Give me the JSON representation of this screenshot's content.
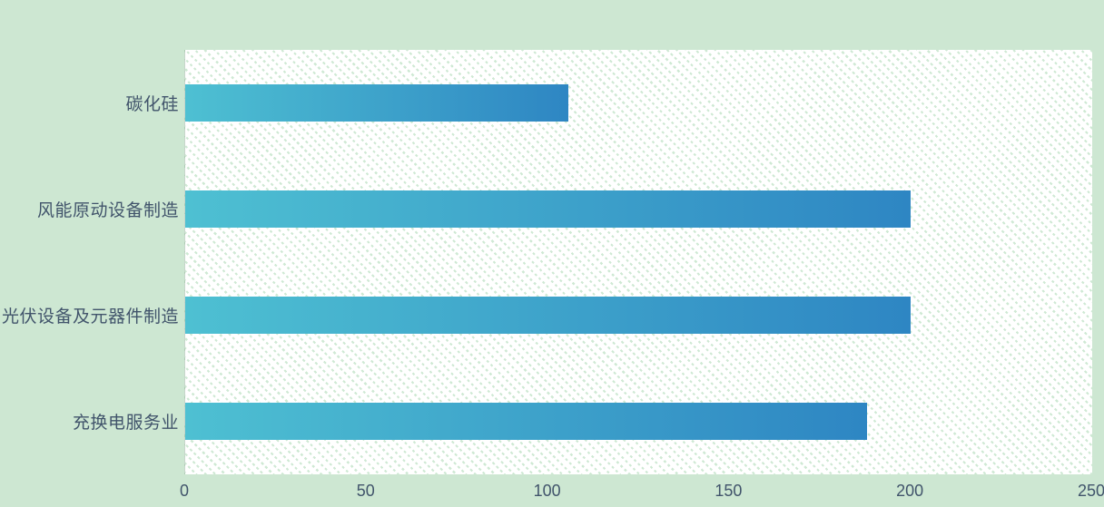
{
  "chart_data": {
    "type": "bar",
    "orientation": "horizontal",
    "title": "",
    "xlabel": "",
    "ylabel": "",
    "categories": [
      "碳化硅",
      "风能原动设备制造",
      "光伏设备及元器件制造",
      "充换电服务业"
    ],
    "values": [
      105.5,
      200,
      200,
      188
    ],
    "xlim": [
      0,
      250
    ],
    "x_ticks": [
      0,
      50,
      100,
      150,
      200,
      250
    ],
    "grid": false,
    "legend": null,
    "plot_background": "hatched"
  },
  "colors": {
    "page_background": "#cde7d2",
    "plot_background": "#ffffff",
    "plot_hatch": "#cfe9d4",
    "bar_gradient_start": "#4ec0d2",
    "bar_gradient_end": "#2e86c3",
    "label_text": "#41546b"
  }
}
